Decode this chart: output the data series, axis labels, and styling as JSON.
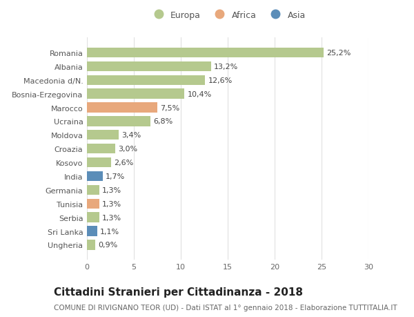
{
  "countries": [
    "Romania",
    "Albania",
    "Macedonia d/N.",
    "Bosnia-Erzegovina",
    "Marocco",
    "Ucraina",
    "Moldova",
    "Croazia",
    "Kosovo",
    "India",
    "Germania",
    "Tunisia",
    "Serbia",
    "Sri Lanka",
    "Ungheria"
  ],
  "values": [
    25.2,
    13.2,
    12.6,
    10.4,
    7.5,
    6.8,
    3.4,
    3.0,
    2.6,
    1.7,
    1.3,
    1.3,
    1.3,
    1.1,
    0.9
  ],
  "labels": [
    "25,2%",
    "13,2%",
    "12,6%",
    "10,4%",
    "7,5%",
    "6,8%",
    "3,4%",
    "3,0%",
    "2,6%",
    "1,7%",
    "1,3%",
    "1,3%",
    "1,3%",
    "1,1%",
    "0,9%"
  ],
  "continents": [
    "Europa",
    "Europa",
    "Europa",
    "Europa",
    "Africa",
    "Europa",
    "Europa",
    "Europa",
    "Europa",
    "Asia",
    "Europa",
    "Africa",
    "Europa",
    "Asia",
    "Europa"
  ],
  "colors": {
    "Europa": "#b5c98e",
    "Africa": "#e8a87c",
    "Asia": "#5b8db8"
  },
  "title": "Cittadini Stranieri per Cittadinanza - 2018",
  "subtitle": "COMUNE DI RIVIGNANO TEOR (UD) - Dati ISTAT al 1° gennaio 2018 - Elaborazione TUTTITALIA.IT",
  "xlim": [
    0,
    30
  ],
  "xticks": [
    0,
    5,
    10,
    15,
    20,
    25,
    30
  ],
  "background_color": "#ffffff",
  "grid_color": "#e0e0e0",
  "bar_height": 0.72,
  "label_fontsize": 8.0,
  "tick_fontsize": 8.0,
  "title_fontsize": 11,
  "subtitle_fontsize": 7.5
}
